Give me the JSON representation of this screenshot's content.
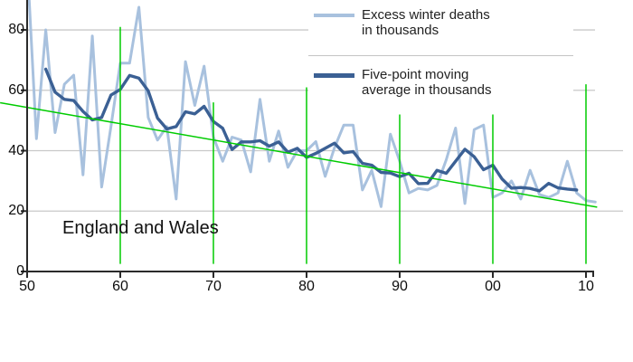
{
  "chart_data": {
    "type": "line",
    "region_label": "England and Wales",
    "x_axis": {
      "tick_labels": [
        "50",
        "60",
        "70",
        "80",
        "90",
        "00",
        "10"
      ],
      "tick_years": [
        1950,
        1960,
        1970,
        1980,
        1990,
        2000,
        2010
      ]
    },
    "y_axis": {
      "tick_labels": [
        "0",
        "20",
        "40",
        "60",
        "80"
      ],
      "tick_values": [
        0,
        20,
        40,
        60,
        80
      ],
      "max_value": 90
    },
    "series": [
      {
        "name": "Excess winter deaths in thousands",
        "color": "#a8c1de",
        "start_year": 1950,
        "values": [
          103,
          44,
          80,
          46,
          62,
          65,
          32,
          78,
          28,
          48,
          69,
          69,
          87.5,
          51,
          43.5,
          48,
          24,
          69.5,
          55,
          68,
          44.5,
          36.5,
          44.5,
          43.5,
          33,
          57,
          36.5,
          46.5,
          34.5,
          40,
          40,
          43,
          31.5,
          41,
          48.5,
          48.5,
          27,
          33.5,
          21.5,
          45.5,
          36.5,
          26,
          27.5,
          27,
          28.5,
          37,
          47.5,
          22.5,
          47,
          48.5,
          24.5,
          26,
          30,
          24,
          33.5,
          25.5,
          24.5,
          26,
          36.5,
          26,
          23.5,
          23
        ]
      },
      {
        "name": "Five-point moving average in thousands",
        "color": "#3b6094",
        "derivation": "centered 5-point moving average of the excess winter deaths series",
        "window": 5
      }
    ],
    "trend_line": {
      "color": "#00cc00",
      "start": {
        "year": 1947.1,
        "value": 55.9
      },
      "end": {
        "year": 2011.2,
        "value": 21.3
      }
    },
    "decade_markers": {
      "color": "#00cc00",
      "bottom_value": 2.5,
      "items": [
        {
          "year": 1960,
          "top_value": 81
        },
        {
          "year": 1970,
          "top_value": 56
        },
        {
          "year": 1980,
          "top_value": 61
        },
        {
          "year": 1990,
          "top_value": 52
        },
        {
          "year": 2000,
          "top_value": 52
        },
        {
          "year": 2010,
          "top_value": 62
        }
      ]
    },
    "legend": {
      "entries": [
        {
          "line1": "Excess winter deaths",
          "line2": "in thousands",
          "color": "#a8c1de"
        },
        {
          "line1": "Five-point moving",
          "line2": "average in thousands",
          "color": "#3b6094"
        }
      ]
    }
  }
}
